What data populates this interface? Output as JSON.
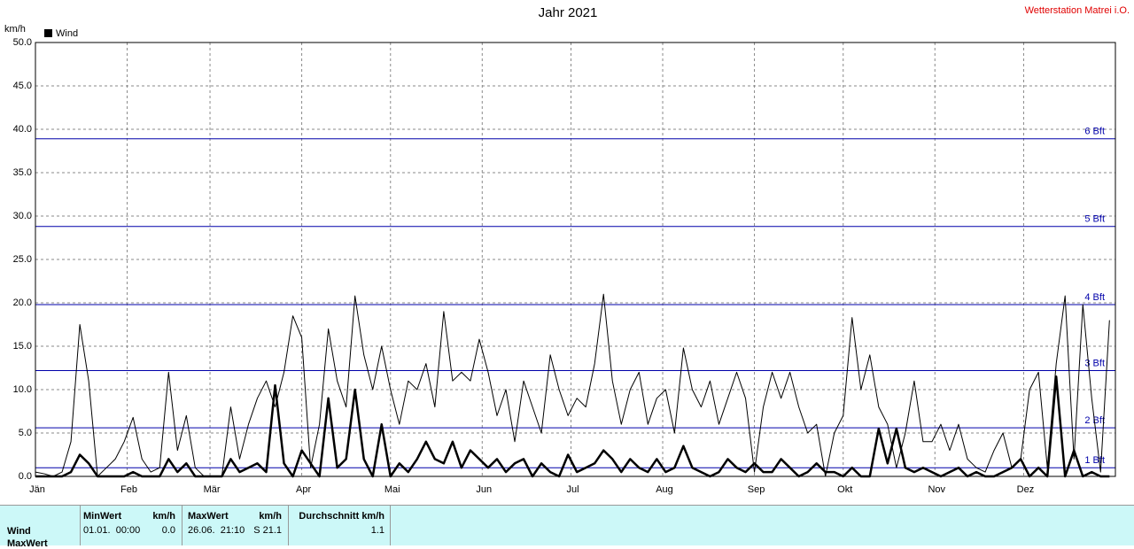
{
  "chart_data": {
    "type": "line",
    "title": "Jahr 2021",
    "station": "Wetterstation Matrei i.O.",
    "y_unit": "km/h",
    "x": [
      0,
      3,
      6,
      9,
      12,
      15,
      18,
      21,
      24,
      27,
      30,
      33,
      36,
      39,
      42,
      45,
      48,
      51,
      54,
      57,
      60,
      63,
      66,
      69,
      72,
      75,
      78,
      81,
      84,
      87,
      90,
      93,
      96,
      99,
      102,
      105,
      108,
      111,
      114,
      117,
      120,
      123,
      126,
      129,
      132,
      135,
      138,
      141,
      144,
      147,
      150,
      153,
      156,
      159,
      162,
      165,
      168,
      171,
      174,
      177,
      180,
      183,
      186,
      189,
      192,
      195,
      198,
      201,
      204,
      207,
      210,
      213,
      216,
      219,
      222,
      225,
      228,
      231,
      234,
      237,
      240,
      243,
      246,
      249,
      252,
      255,
      258,
      261,
      264,
      267,
      270,
      273,
      276,
      279,
      282,
      285,
      288,
      291,
      294,
      297,
      300,
      303,
      306,
      309,
      312,
      315,
      318,
      321,
      324,
      327,
      330,
      333,
      336,
      339,
      342,
      345,
      348,
      351,
      354,
      357,
      360,
      363
    ],
    "series": [
      {
        "name": "Wind",
        "color": "#000000",
        "values": [
          0,
          0,
          0,
          0,
          0.5,
          2.5,
          1.5,
          0,
          0,
          0,
          0,
          0.5,
          0,
          0,
          0,
          2,
          0.5,
          1.5,
          0,
          0,
          0,
          0,
          2,
          0.5,
          1,
          1.5,
          0.5,
          10.5,
          1.5,
          0,
          3,
          1.5,
          0,
          9,
          1,
          2,
          10,
          2,
          0,
          6,
          0,
          1.5,
          0.5,
          2,
          4,
          2,
          1.5,
          4,
          1,
          3,
          2,
          1,
          2,
          0.5,
          1.5,
          2,
          0,
          1.5,
          0.5,
          0,
          2.5,
          0.5,
          1,
          1.5,
          3,
          2,
          0.5,
          2,
          1,
          0.5,
          2,
          0.5,
          1,
          3.5,
          1,
          0.5,
          0,
          0.5,
          2,
          1,
          0.5,
          1.5,
          0.5,
          0.5,
          2,
          1,
          0,
          0.5,
          1.5,
          0.5,
          0.5,
          0,
          1,
          0,
          0,
          5.5,
          1.5,
          5.5,
          1,
          0.5,
          1,
          0.5,
          0,
          0.5,
          1,
          0,
          0.5,
          0,
          0,
          0.5,
          1,
          2,
          0,
          1,
          0,
          11.5,
          0,
          3,
          0,
          0.5,
          0,
          0
        ]
      },
      {
        "color": "#000000",
        "values": [
          0.5,
          0.3,
          0,
          0.5,
          4,
          17.5,
          11,
          0,
          1,
          2,
          4,
          6.8,
          2,
          0.5,
          1,
          12,
          3,
          7,
          1,
          0,
          0,
          0,
          8,
          2,
          6,
          9,
          11,
          8,
          12,
          18.5,
          16,
          1,
          6,
          17,
          11,
          8,
          20.8,
          14,
          10,
          15,
          10,
          6,
          11,
          10,
          13,
          8,
          19,
          11,
          12,
          11,
          15.8,
          12,
          7,
          10,
          4,
          11,
          8,
          5,
          14,
          10,
          7,
          9,
          8,
          13,
          21,
          11,
          6,
          10,
          12,
          6,
          9,
          10,
          5,
          14.8,
          10,
          8,
          11,
          6,
          9,
          12,
          9,
          0.5,
          8,
          12,
          9,
          12,
          8,
          5,
          6,
          0,
          5,
          7,
          18.3,
          10,
          14,
          8,
          6,
          1,
          5,
          11,
          4,
          4,
          6,
          3,
          6,
          2,
          1,
          0.5,
          3,
          5,
          1,
          2,
          10,
          12,
          1,
          13,
          20.8,
          2,
          19.8,
          9,
          0.5,
          18
        ]
      }
    ],
    "xlim": [
      0,
      365
    ],
    "xticks": [
      {
        "value": 0,
        "label": "Jän"
      },
      {
        "value": 31,
        "label": "Feb"
      },
      {
        "value": 59,
        "label": "Mär"
      },
      {
        "value": 90,
        "label": "Apr"
      },
      {
        "value": 120,
        "label": "Mai"
      },
      {
        "value": 151,
        "label": "Jun"
      },
      {
        "value": 181,
        "label": "Jul"
      },
      {
        "value": 212,
        "label": "Aug"
      },
      {
        "value": 243,
        "label": "Sep"
      },
      {
        "value": 273,
        "label": "Okt"
      },
      {
        "value": 304,
        "label": "Nov"
      },
      {
        "value": 334,
        "label": "Dez"
      }
    ],
    "ylim": [
      0,
      50
    ],
    "yticks": [
      {
        "value": 0,
        "label": "0.0"
      },
      {
        "value": 5,
        "label": "5.0"
      },
      {
        "value": 10,
        "label": "10.0"
      },
      {
        "value": 15,
        "label": "15.0"
      },
      {
        "value": 20,
        "label": "20.0"
      },
      {
        "value": 25,
        "label": "25.0"
      },
      {
        "value": 30,
        "label": "30.0"
      },
      {
        "value": 35,
        "label": "35.0"
      },
      {
        "value": 40,
        "label": "40.0"
      },
      {
        "value": 45,
        "label": "45.0"
      },
      {
        "value": 50,
        "label": "50.0"
      }
    ],
    "reference_lines": [
      {
        "value": 1,
        "label": "1 Bft"
      },
      {
        "value": 5.6,
        "label": "2 Bft"
      },
      {
        "value": 12.2,
        "label": "3 Bft"
      },
      {
        "value": 19.8,
        "label": "4 Bft"
      },
      {
        "value": 28.8,
        "label": "5 Bft"
      },
      {
        "value": 38.9,
        "label": "6 Bft"
      }
    ],
    "reference_color": "#0000aa",
    "grid": true
  },
  "table": {
    "headers": [
      "MinWert",
      "km/h",
      "MaxWert",
      "km/h",
      "Durchschnitt km/h"
    ],
    "rows": [
      {
        "label": "Wind",
        "cells": [
          "01.01.  00:00",
          "0.0",
          "26.06.  21:10",
          "S 21.1",
          "1.1"
        ]
      },
      {
        "label": "MaxWert"
      }
    ]
  }
}
